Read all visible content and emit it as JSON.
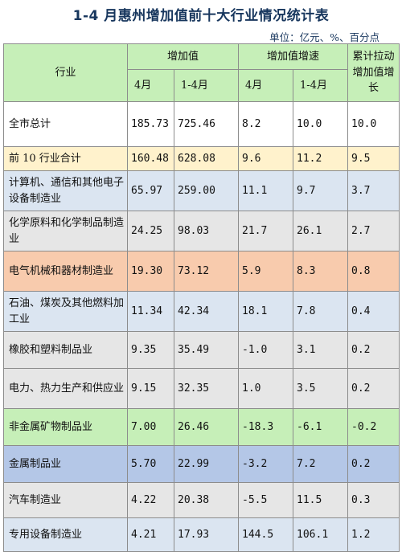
{
  "title": "1-4 月惠州增加值前十大行业情况统计表",
  "unit": "单位：亿元、%、百分点",
  "header": {
    "industry": "行业",
    "value_added": "增加值",
    "growth": "增加值增速",
    "contribution": "累计拉动增加值增长",
    "month4": "4月",
    "jan_apr": "1-4月"
  },
  "rows": [
    {
      "name": "全市总计",
      "v_apr": "185.73",
      "v_ytd": "725.46",
      "g_apr": "8.2",
      "g_ytd": "10.0",
      "pull": "10.0"
    },
    {
      "name": "前 10 行业合计",
      "v_apr": "160.48",
      "v_ytd": "628.08",
      "g_apr": "9.6",
      "g_ytd": "11.2",
      "pull": "9.5"
    },
    {
      "name": "计算机、通信和其他电子设备制造业",
      "v_apr": "65.97",
      "v_ytd": "259.00",
      "g_apr": "11.1",
      "g_ytd": "9.7",
      "pull": "3.7"
    },
    {
      "name": "化学原料和化学制品制造业",
      "v_apr": "24.25",
      "v_ytd": "98.03",
      "g_apr": "21.7",
      "g_ytd": "26.1",
      "pull": "2.7"
    },
    {
      "name": "电气机械和器材制造业",
      "v_apr": "19.30",
      "v_ytd": "73.12",
      "g_apr": "5.9",
      "g_ytd": "8.3",
      "pull": "0.8"
    },
    {
      "name": "石油、煤炭及其他燃料加工业",
      "v_apr": "11.34",
      "v_ytd": "42.34",
      "g_apr": "18.1",
      "g_ytd": "7.8",
      "pull": "0.4"
    },
    {
      "name": "橡胶和塑料制品业",
      "v_apr": "9.35",
      "v_ytd": "35.49",
      "g_apr": "-1.0",
      "g_ytd": "3.1",
      "pull": "0.2"
    },
    {
      "name": "电力、热力生产和供应业",
      "v_apr": "9.15",
      "v_ytd": "32.35",
      "g_apr": "1.0",
      "g_ytd": "3.5",
      "pull": "0.2"
    },
    {
      "name": "非金属矿物制品业",
      "v_apr": "7.00",
      "v_ytd": "26.46",
      "g_apr": "-18.3",
      "g_ytd": "-6.1",
      "pull": "-0.2"
    },
    {
      "name": "金属制品业",
      "v_apr": "5.70",
      "v_ytd": "22.99",
      "g_apr": "-3.2",
      "g_ytd": "7.2",
      "pull": "0.2"
    },
    {
      "name": "汽车制造业",
      "v_apr": "4.22",
      "v_ytd": "20.38",
      "g_apr": "-5.5",
      "g_ytd": "11.5",
      "pull": "0.3"
    },
    {
      "name": "专用设备制造业",
      "v_apr": "4.21",
      "v_ytd": "17.93",
      "g_apr": "144.5",
      "g_ytd": "106.1",
      "pull": "1.2"
    }
  ],
  "colors": {
    "header": "#c6efb8",
    "top10": "#fff2cc",
    "blue": "#dbe5f1",
    "gray": "#e6e6e6",
    "orange": "#f8cbad",
    "green": "#c6efb8",
    "steel": "#b4c7e7"
  }
}
